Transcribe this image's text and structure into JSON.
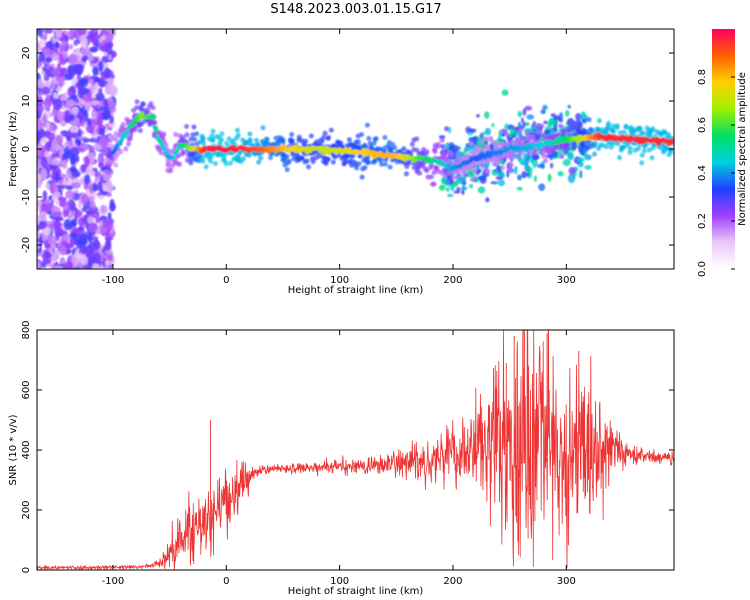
{
  "title": "S148.2023.003.01.15.G17",
  "chart_data": [
    {
      "type": "heatmap",
      "title": "",
      "xlabel": "Height of straight line (km)",
      "ylabel": "Frequency (Hz)",
      "xlim": [
        -167,
        395
      ],
      "ylim": [
        -25,
        25
      ],
      "x_ticks": [
        -100,
        0,
        100,
        200,
        300
      ],
      "y_ticks": [
        20,
        10,
        0,
        -10,
        -20
      ],
      "grid": false,
      "colorbar": {
        "label": "Normalized spectral amplitude",
        "range": [
          0.0,
          1.0
        ],
        "ticks": [
          "0.0",
          "0.2",
          "0.4",
          "0.6",
          "0.8"
        ],
        "tick_values": [
          0.0,
          0.2,
          0.4,
          0.6,
          0.8
        ],
        "colormap": "gist_rainbow",
        "colors": [
          "#ffffff",
          "#e8c8f8",
          "#a040ff",
          "#2040ff",
          "#00d0e0",
          "#00e060",
          "#a0f000",
          "#ffd000",
          "#ff6000",
          "#ff0060"
        ]
      },
      "ridge": {
        "x": [
          -100,
          -90,
          -80,
          -75,
          -70,
          -65,
          -60,
          -55,
          -50,
          -45,
          -40,
          -30,
          -20,
          0,
          30,
          50,
          80,
          110,
          130,
          150,
          170,
          185,
          200,
          220,
          250,
          280,
          300,
          330,
          360,
          395
        ],
        "frequency": [
          -1,
          3,
          6,
          7,
          6.5,
          7,
          2,
          0,
          -2,
          -1,
          1,
          0,
          0,
          0,
          0,
          0,
          0,
          -0.5,
          -1,
          -1.5,
          -2,
          -2.5,
          -4,
          -2,
          0,
          1,
          2,
          2.5,
          2,
          1.5
        ],
        "amplitude": [
          0.35,
          0.45,
          0.55,
          0.65,
          0.6,
          0.55,
          0.5,
          0.45,
          0.4,
          0.45,
          0.5,
          0.7,
          0.95,
          0.98,
          0.9,
          0.8,
          0.7,
          0.75,
          0.8,
          0.8,
          0.6,
          0.5,
          0.4,
          0.35,
          0.4,
          0.45,
          0.55,
          0.95,
          0.95,
          0.95
        ]
      },
      "noise_region_x": [
        -167,
        -100
      ],
      "scatter_regions": [
        {
          "x": [
            190,
            320
          ],
          "frequency_range": [
            -8,
            6
          ],
          "amplitude": [
            0.25,
            0.55
          ]
        }
      ]
    },
    {
      "type": "line",
      "title": "",
      "xlabel": "Height of straight line (km)",
      "ylabel": "SNR (10 * v/v)",
      "xlim": [
        -167,
        395
      ],
      "ylim": [
        0,
        800
      ],
      "x_ticks": [
        -100,
        0,
        100,
        200,
        300
      ],
      "y_ticks": [
        0,
        200,
        400,
        600,
        800
      ],
      "grid": false,
      "color": "#ee3333",
      "series": [
        {
          "x": [
            -167,
            -120,
            -100,
            -80,
            -70,
            -60,
            -55,
            -50,
            -45,
            -40,
            -35,
            -30,
            -25,
            -20,
            -15,
            -10,
            -5,
            0,
            5,
            10,
            15,
            20,
            25,
            30,
            35,
            40,
            50,
            60,
            70,
            80,
            90,
            95,
            100,
            110,
            120,
            130,
            140,
            150,
            160,
            170,
            180,
            190,
            200,
            210,
            220,
            230,
            240,
            250,
            260,
            270,
            280,
            290,
            300,
            310,
            320,
            330,
            340,
            350,
            360,
            370,
            380,
            390,
            395
          ],
          "y": [
            8,
            8,
            10,
            10,
            12,
            20,
            40,
            60,
            80,
            100,
            120,
            140,
            150,
            170,
            180,
            200,
            220,
            230,
            240,
            260,
            290,
            310,
            320,
            330,
            335,
            338,
            340,
            340,
            340,
            342,
            345,
            345,
            345,
            345,
            345,
            348,
            350,
            355,
            360,
            365,
            370,
            375,
            385,
            390,
            400,
            405,
            410,
            410,
            400,
            390,
            380,
            380,
            380,
            390,
            400,
            410,
            410,
            395,
            385,
            380,
            375,
            372,
            370
          ],
          "amplitude": [
            3,
            3,
            3,
            3,
            4,
            8,
            15,
            30,
            45,
            40,
            45,
            60,
            55,
            50,
            60,
            70,
            60,
            50,
            45,
            45,
            35,
            25,
            15,
            10,
            8,
            8,
            8,
            8,
            8,
            8,
            12,
            12,
            12,
            12,
            14,
            15,
            18,
            25,
            30,
            35,
            40,
            45,
            55,
            60,
            75,
            100,
            150,
            180,
            220,
            210,
            180,
            170,
            160,
            140,
            120,
            90,
            45,
            25,
            20,
            15,
            12,
            10,
            10
          ]
        }
      ],
      "spikes": [
        {
          "x": -14,
          "y": 500
        },
        {
          "x": 263,
          "y": 800
        },
        {
          "x": 283,
          "y": 790
        },
        {
          "x": 254,
          "y": 780
        },
        {
          "x": 311,
          "y": 730
        },
        {
          "x": 247,
          "y": 690
        }
      ]
    }
  ]
}
